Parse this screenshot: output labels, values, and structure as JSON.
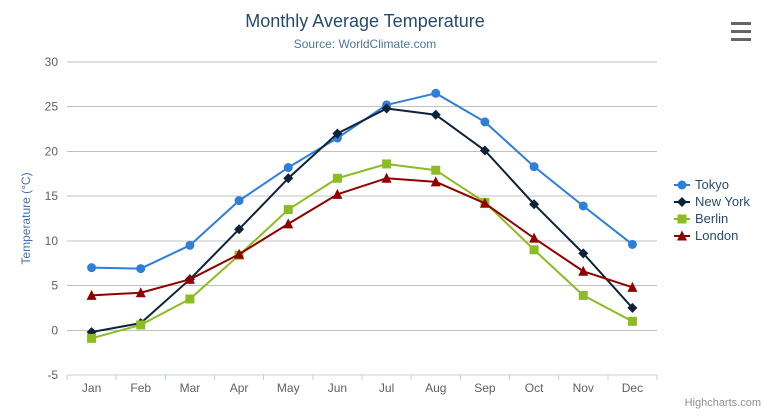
{
  "credits": "Highcharts.com",
  "context_menu": {
    "icon": "hamburger-icon"
  },
  "chart_data": {
    "type": "line",
    "title": "Monthly Average Temperature",
    "subtitle": "Source: WorldClimate.com",
    "xlabel": "",
    "ylabel": "Temperature (°C)",
    "ylim": [
      -5,
      30
    ],
    "yticks": [
      -5,
      0,
      5,
      10,
      15,
      20,
      25,
      30
    ],
    "grid": true,
    "legend_position": "right-middle",
    "categories": [
      "Jan",
      "Feb",
      "Mar",
      "Apr",
      "May",
      "Jun",
      "Jul",
      "Aug",
      "Sep",
      "Oct",
      "Nov",
      "Dec"
    ],
    "series": [
      {
        "name": "Tokyo",
        "color": "#2f7ed8",
        "marker": "circle",
        "values": [
          7.0,
          6.9,
          9.5,
          14.5,
          18.2,
          21.5,
          25.2,
          26.5,
          23.3,
          18.3,
          13.9,
          9.6
        ]
      },
      {
        "name": "New York",
        "color": "#0d233a",
        "marker": "diamond",
        "values": [
          -0.2,
          0.8,
          5.7,
          11.3,
          17.0,
          22.0,
          24.8,
          24.1,
          20.1,
          14.1,
          8.6,
          2.5
        ]
      },
      {
        "name": "Berlin",
        "color": "#8bbc21",
        "marker": "square",
        "values": [
          -0.9,
          0.6,
          3.5,
          8.4,
          13.5,
          17.0,
          18.6,
          17.9,
          14.3,
          9.0,
          3.9,
          1.0
        ]
      },
      {
        "name": "London",
        "color": "#910000",
        "marker": "triangle",
        "values": [
          3.9,
          4.2,
          5.7,
          8.5,
          11.9,
          15.2,
          17.0,
          16.6,
          14.2,
          10.3,
          6.6,
          4.8
        ]
      }
    ],
    "colors": {
      "title": "#274b6d",
      "subtitle": "#4d759e",
      "axis_labels": "#606060",
      "yaxis_title": "#4572A7",
      "gridline": "#C0C0C0",
      "axis_line": "#C0D0E0",
      "legend_text": "#274b6d",
      "credits_text": "#909090"
    }
  }
}
